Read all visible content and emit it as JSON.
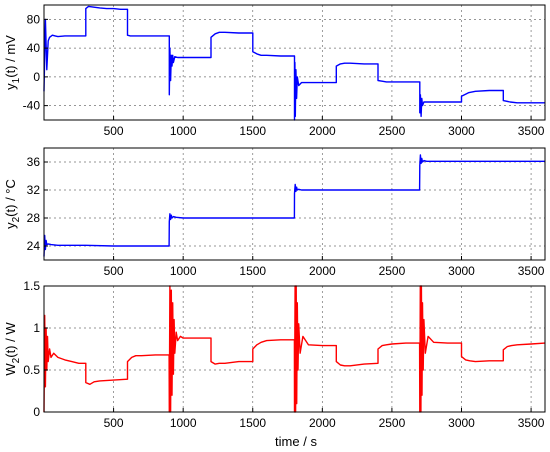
{
  "chart_data": [
    {
      "type": "line",
      "ylabel": "y1(t) / mV",
      "ylabel_parts": {
        "main": "y",
        "sub": "1",
        "rest": "(t) / mV"
      },
      "xlim": [
        0,
        3600
      ],
      "ylim": [
        -60,
        100
      ],
      "xticks": [
        500,
        1000,
        1500,
        2000,
        2500,
        3000,
        3500
      ],
      "yticks": [
        -40,
        0,
        40,
        80
      ],
      "grid": true,
      "color": "#0000ff",
      "series": [
        {
          "x": [
            0,
            10,
            20,
            30,
            40,
            60,
            80,
            100,
            150,
            200,
            300,
            300,
            320,
            360,
            400,
            450,
            500,
            550,
            600,
            600,
            620,
            650,
            700,
            750,
            800,
            850,
            880,
            900,
            900,
            905,
            910,
            915,
            920,
            925,
            930,
            940,
            960,
            1000,
            1050,
            1100,
            1150,
            1200,
            1200,
            1230,
            1260,
            1300,
            1400,
            1500,
            1500,
            1530,
            1560,
            1600,
            1700,
            1790,
            1800,
            1800,
            1803,
            1806,
            1810,
            1815,
            1820,
            1830,
            1850,
            1900,
            2000,
            2100,
            2100,
            2130,
            2160,
            2200,
            2300,
            2400,
            2400,
            2430,
            2460,
            2500,
            2600,
            2690,
            2700,
            2700,
            2705,
            2710,
            2715,
            2720,
            2730,
            2750,
            2800,
            2900,
            3000,
            3000,
            3050,
            3100,
            3200,
            3300,
            3300,
            3350,
            3400,
            3500,
            3600
          ],
          "y": [
            -20,
            80,
            10,
            50,
            55,
            58,
            57,
            56,
            57,
            57,
            57,
            95,
            98,
            97,
            96,
            95,
            95,
            94,
            94,
            58,
            57,
            57,
            57,
            57,
            57,
            57,
            57,
            57,
            -25,
            40,
            -5,
            30,
            15,
            30,
            20,
            28,
            27,
            27,
            27,
            27,
            27,
            27,
            55,
            60,
            62,
            62,
            61,
            61,
            35,
            32,
            30,
            30,
            29,
            29,
            29,
            -65,
            20,
            -55,
            10,
            -30,
            0,
            -12,
            -8,
            -8,
            -8,
            -8,
            15,
            18,
            19,
            19,
            18,
            18,
            -5,
            -6,
            -7,
            -7,
            -7,
            -7,
            -7,
            -50,
            -25,
            -55,
            -30,
            -40,
            -35,
            -35,
            -35,
            -35,
            -35,
            -27,
            -22,
            -20,
            -19,
            -19,
            -33,
            -35,
            -36,
            -36,
            -36
          ]
        }
      ]
    },
    {
      "type": "line",
      "ylabel": "y2(t) / °C",
      "ylabel_parts": {
        "main": "y",
        "sub": "2",
        "rest": "(t) / °C"
      },
      "xlim": [
        0,
        3600
      ],
      "ylim": [
        22,
        38
      ],
      "xticks": [
        500,
        1000,
        1500,
        2000,
        2500,
        3000,
        3500
      ],
      "yticks": [
        24,
        28,
        32,
        36
      ],
      "grid": true,
      "color": "#0000ff",
      "series": [
        {
          "x": [
            0,
            5,
            10,
            15,
            20,
            30,
            50,
            100,
            300,
            500,
            700,
            899,
            900,
            905,
            910,
            915,
            920,
            930,
            950,
            1000,
            1200,
            1500,
            1799,
            1800,
            1805,
            1810,
            1815,
            1820,
            1830,
            1850,
            1900,
            2200,
            2500,
            2699,
            2700,
            2705,
            2710,
            2715,
            2720,
            2730,
            2750,
            2800,
            3100,
            3400,
            3600
          ],
          "y": [
            22.5,
            25.5,
            23.5,
            24.8,
            24.2,
            24.3,
            24.2,
            24.1,
            24.1,
            24.0,
            24.0,
            24.0,
            27.5,
            28.6,
            27.8,
            28.4,
            28.0,
            28.2,
            28.1,
            28.0,
            28.0,
            28.0,
            28.0,
            31.5,
            32.8,
            31.8,
            32.4,
            32.0,
            32.1,
            32.0,
            32.0,
            32.0,
            32.0,
            32.0,
            35.5,
            37.0,
            35.8,
            36.5,
            36.0,
            36.2,
            36.1,
            36.1,
            36.1,
            36.1,
            36.1
          ]
        }
      ]
    },
    {
      "type": "line",
      "ylabel": "W2(t) / W",
      "ylabel_parts": {
        "main": "W",
        "sub": "2",
        "rest": "(t) / W"
      },
      "xlabel": "time / s",
      "xlim": [
        0,
        3600
      ],
      "ylim": [
        0,
        1.5
      ],
      "xticks": [
        500,
        1000,
        1500,
        2000,
        2500,
        3000,
        3500
      ],
      "yticks": [
        0,
        0.5,
        1,
        1.5
      ],
      "ytick_labels": [
        "0",
        "0.5",
        "1",
        "1.5"
      ],
      "grid": true,
      "color": "#ff0000",
      "series": [
        {
          "x": [
            0,
            5,
            10,
            15,
            20,
            25,
            30,
            40,
            50,
            70,
            100,
            150,
            200,
            250,
            300,
            300,
            330,
            360,
            400,
            500,
            600,
            600,
            630,
            660,
            700,
            800,
            899,
            900,
            905,
            910,
            915,
            920,
            925,
            930,
            935,
            940,
            950,
            960,
            980,
            1000,
            1100,
            1200,
            1200,
            1230,
            1260,
            1300,
            1400,
            1500,
            1500,
            1530,
            1560,
            1600,
            1700,
            1799,
            1800,
            1804,
            1808,
            1812,
            1816,
            1820,
            1825,
            1830,
            1840,
            1860,
            1900,
            2000,
            2100,
            2100,
            2130,
            2160,
            2200,
            2300,
            2400,
            2400,
            2430,
            2460,
            2500,
            2600,
            2699,
            2700,
            2704,
            2708,
            2712,
            2716,
            2720,
            2725,
            2730,
            2740,
            2760,
            2800,
            2900,
            3000,
            3000,
            3030,
            3060,
            3100,
            3200,
            3300,
            3300,
            3330,
            3360,
            3400,
            3500,
            3600
          ],
          "y": [
            0,
            1.15,
            0.3,
            1.0,
            0.5,
            0.9,
            0.6,
            0.75,
            0.65,
            0.7,
            0.65,
            0.62,
            0.6,
            0.58,
            0.58,
            0.35,
            0.33,
            0.36,
            0.37,
            0.38,
            0.39,
            0.6,
            0.65,
            0.67,
            0.67,
            0.68,
            0.68,
            0.0,
            1.5,
            0.0,
            1.45,
            0.2,
            1.3,
            0.45,
            1.1,
            0.7,
            0.95,
            0.85,
            0.9,
            0.88,
            0.88,
            0.88,
            0.6,
            0.57,
            0.58,
            0.58,
            0.6,
            0.6,
            0.75,
            0.8,
            0.83,
            0.85,
            0.86,
            0.86,
            0.0,
            1.5,
            0.0,
            1.5,
            0.1,
            1.3,
            0.5,
            1.05,
            0.7,
            0.9,
            0.8,
            0.79,
            0.79,
            0.6,
            0.56,
            0.55,
            0.55,
            0.57,
            0.58,
            0.75,
            0.79,
            0.8,
            0.81,
            0.82,
            0.82,
            0.0,
            1.5,
            0.0,
            1.5,
            0.2,
            1.3,
            0.5,
            1.1,
            0.7,
            0.9,
            0.83,
            0.82,
            0.82,
            0.66,
            0.62,
            0.61,
            0.6,
            0.61,
            0.61,
            0.74,
            0.78,
            0.79,
            0.8,
            0.81,
            0.82
          ]
        }
      ]
    }
  ]
}
